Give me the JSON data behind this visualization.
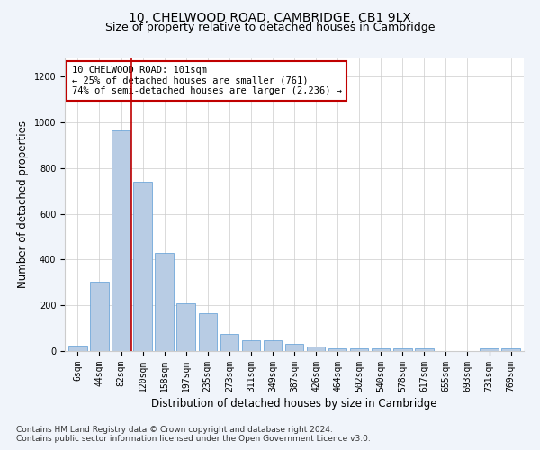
{
  "title1": "10, CHELWOOD ROAD, CAMBRIDGE, CB1 9LX",
  "title2": "Size of property relative to detached houses in Cambridge",
  "xlabel": "Distribution of detached houses by size in Cambridge",
  "ylabel": "Number of detached properties",
  "categories": [
    "6sqm",
    "44sqm",
    "82sqm",
    "120sqm",
    "158sqm",
    "197sqm",
    "235sqm",
    "273sqm",
    "311sqm",
    "349sqm",
    "387sqm",
    "426sqm",
    "464sqm",
    "502sqm",
    "540sqm",
    "578sqm",
    "617sqm",
    "655sqm",
    "693sqm",
    "731sqm",
    "769sqm"
  ],
  "values": [
    25,
    305,
    965,
    740,
    430,
    210,
    165,
    75,
    48,
    48,
    30,
    18,
    12,
    12,
    12,
    12,
    12,
    0,
    0,
    12,
    12
  ],
  "bar_color": "#b8cce4",
  "bar_edge_color": "#5b9bd5",
  "vline_x_index": 2.48,
  "vline_color": "#c00000",
  "annotation_text": "10 CHELWOOD ROAD: 101sqm\n← 25% of detached houses are smaller (761)\n74% of semi-detached houses are larger (2,236) →",
  "annotation_box_color": "#ffffff",
  "annotation_box_edge": "#c00000",
  "ylim": [
    0,
    1280
  ],
  "yticks": [
    0,
    200,
    400,
    600,
    800,
    1000,
    1200
  ],
  "footer1": "Contains HM Land Registry data © Crown copyright and database right 2024.",
  "footer2": "Contains public sector information licensed under the Open Government Licence v3.0.",
  "background_color": "#f0f4fa",
  "plot_bg_color": "#ffffff",
  "title1_fontsize": 10,
  "title2_fontsize": 9,
  "xlabel_fontsize": 8.5,
  "ylabel_fontsize": 8.5,
  "tick_fontsize": 7,
  "footer_fontsize": 6.5,
  "ann_fontsize": 7.5
}
